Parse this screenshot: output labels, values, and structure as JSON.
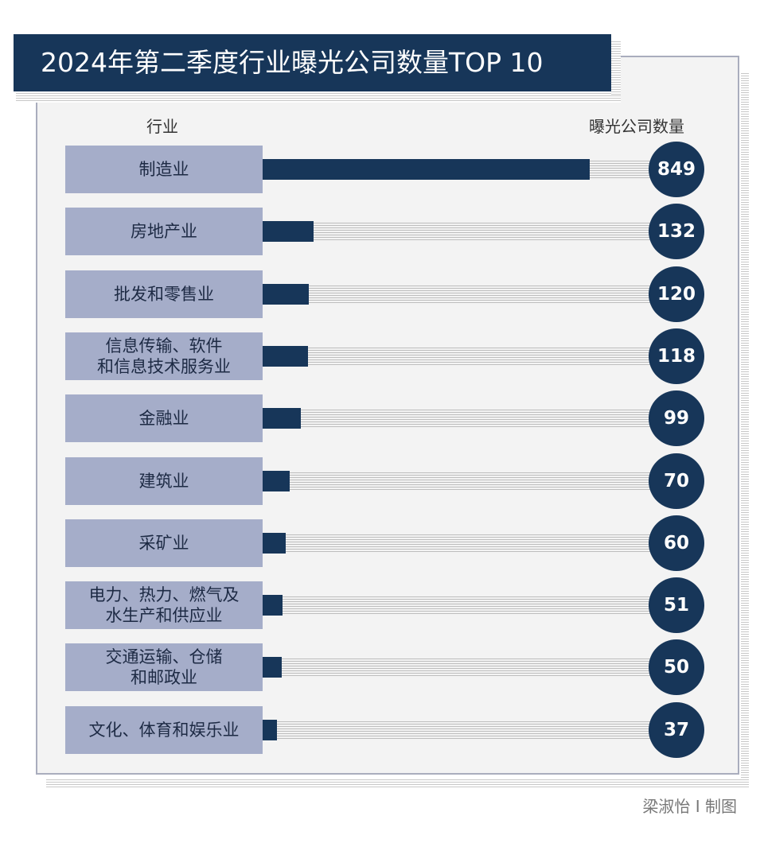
{
  "chart_data": {
    "type": "bar",
    "title": "2024年第二季度行业曝光公司数量TOP 10",
    "xlabel": "曝光公司数量",
    "ylabel": "行业",
    "categories": [
      "制造业",
      "房地产业",
      "批发和零售业",
      "信息传输、软件\n和信息技术服务业",
      "金融业",
      "建筑业",
      "采矿业",
      "电力、热力、燃气及\n水生产和供应业",
      "交通运输、仓储\n和邮政业",
      "文化、体育和娱乐业"
    ],
    "values": [
      849,
      132,
      120,
      118,
      99,
      70,
      60,
      51,
      50,
      37
    ],
    "xlim": [
      0,
      849
    ]
  },
  "credit": "梁淑怡 I 制图",
  "colors": {
    "bar": "#173659",
    "label_bg": "#a5adc9",
    "panel": "#f3f3f3"
  }
}
